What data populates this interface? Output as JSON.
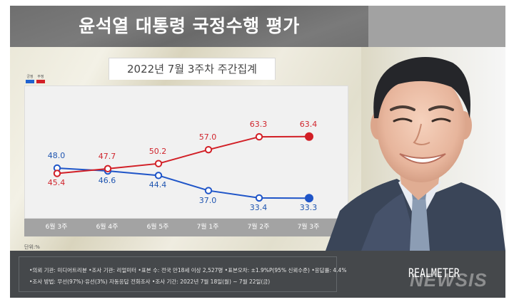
{
  "header": {
    "title": "윤석열 대통령 국정수행 평가",
    "subtitle": "2022년 7월 3주차 주간집계"
  },
  "legend": [
    {
      "label": "긍정",
      "color": "#1f62d0"
    },
    {
      "label": "부정",
      "color": "#d21f26"
    }
  ],
  "unit": "단위:%",
  "colors": {
    "positive": "#1f55b0",
    "negative": "#d0252d",
    "plot_bg": "#f1f1f1",
    "axis_band": "#a3a3a3",
    "footer_bg": "#45484b"
  },
  "chart_data": {
    "type": "line",
    "title": "윤석열 대통령 국정수행 평가",
    "subtitle": "2022년 7월 3주차 주간집계",
    "xlabel": "",
    "ylabel": "단위:%",
    "categories": [
      "6월 3주",
      "6월 4주",
      "6월 5주",
      "7월 1주",
      "7월 2주",
      "7월 3주"
    ],
    "series": [
      {
        "name": "긍정",
        "color": "#1f55b0",
        "values": [
          48.0,
          46.6,
          44.4,
          37.0,
          33.4,
          33.3
        ],
        "labels": [
          "48.0",
          "46.6",
          "44.4",
          "37.0",
          "33.4",
          "33.3"
        ]
      },
      {
        "name": "부정",
        "color": "#d0252d",
        "values": [
          45.4,
          47.7,
          50.2,
          57.0,
          63.3,
          63.4
        ],
        "labels": [
          "45.4",
          "47.7",
          "50.2",
          "57.0",
          "63.3",
          "63.4"
        ]
      }
    ],
    "legend_position": "top-left",
    "grid": false,
    "ylim": [
      25,
      75
    ]
  },
  "footer": {
    "line1": "•의뢰 기관: 미디어트리뷴 •조사 기관: 리얼미터 •표본 수: 전국 만18세 이상 2,527명 •표본오차: ±1.9%P(95% 신뢰수준) •응답률: 4.4%",
    "line2": "•조사 방법: 무선(97%)·유선(3%) 자동응답 전화조사 •조사 기간: 2022년 7월 18일(월) ~ 7월 22일(금)",
    "brand": "REALMETER",
    "watermark": "NEWSIS"
  }
}
